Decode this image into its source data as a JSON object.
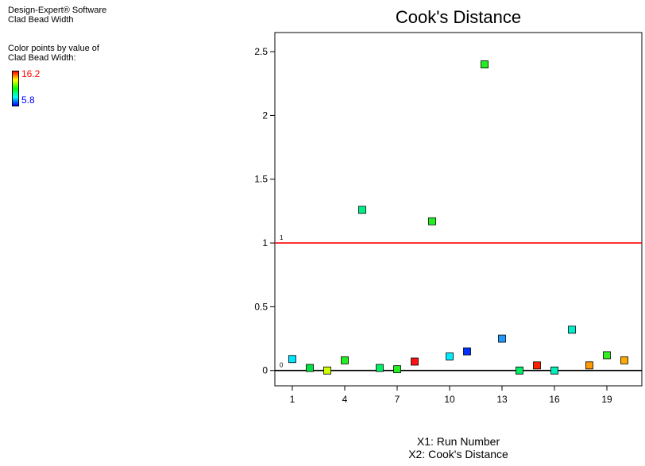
{
  "info": {
    "software": "Design-Expert® Software",
    "response": "Clad Bead Width"
  },
  "legend": {
    "heading_line1": "Color points by value of",
    "heading_line2": "Clad Bead Width:",
    "max": "16.2",
    "min": "5.8",
    "max_color": "#ff0000",
    "min_color": "#0000ff"
  },
  "chart_data": {
    "type": "scatter",
    "title": "Cook's Distance",
    "x_axis_title_line1": "X1: Run Number",
    "x_axis_title_line2": "X2: Cook's Distance",
    "xlim": [
      0,
      21
    ],
    "ylim": [
      -0.12,
      2.65
    ],
    "x_ticks": [
      1,
      4,
      7,
      10,
      13,
      16,
      19
    ],
    "y_ticks": [
      0,
      0.5,
      1,
      1.5,
      2,
      2.5
    ],
    "y_tick_labels": [
      "0",
      "0.5",
      "1",
      "1.5",
      "2",
      "2.5"
    ],
    "reference_lines": [
      {
        "value": 1,
        "label": "1",
        "color": "#ff0000"
      },
      {
        "value": 0,
        "label": "0",
        "color": "#000000"
      }
    ],
    "points": [
      {
        "run": 1,
        "cooks_distance": 0.09,
        "color": "#00e5ff"
      },
      {
        "run": 2,
        "cooks_distance": 0.02,
        "color": "#00e040"
      },
      {
        "run": 3,
        "cooks_distance": 0.0,
        "color": "#ccff00"
      },
      {
        "run": 4,
        "cooks_distance": 0.08,
        "color": "#22ee22"
      },
      {
        "run": 5,
        "cooks_distance": 1.26,
        "color": "#00ee88"
      },
      {
        "run": 6,
        "cooks_distance": 0.02,
        "color": "#00ee66"
      },
      {
        "run": 7,
        "cooks_distance": 0.01,
        "color": "#22ee22"
      },
      {
        "run": 8,
        "cooks_distance": 0.07,
        "color": "#ff1111"
      },
      {
        "run": 9,
        "cooks_distance": 1.17,
        "color": "#22ee22"
      },
      {
        "run": 10,
        "cooks_distance": 0.11,
        "color": "#00eeff"
      },
      {
        "run": 11,
        "cooks_distance": 0.15,
        "color": "#0033ff"
      },
      {
        "run": 12,
        "cooks_distance": 2.4,
        "color": "#22ee22"
      },
      {
        "run": 13,
        "cooks_distance": 0.25,
        "color": "#2299ff"
      },
      {
        "run": 14,
        "cooks_distance": 0.0,
        "color": "#00ee66"
      },
      {
        "run": 15,
        "cooks_distance": 0.04,
        "color": "#ff2200"
      },
      {
        "run": 16,
        "cooks_distance": 0.0,
        "color": "#00eebb"
      },
      {
        "run": 17,
        "cooks_distance": 0.32,
        "color": "#00eecc"
      },
      {
        "run": 18,
        "cooks_distance": 0.04,
        "color": "#ff9900"
      },
      {
        "run": 19,
        "cooks_distance": 0.12,
        "color": "#33ee22"
      },
      {
        "run": 20,
        "cooks_distance": 0.08,
        "color": "#ffaa00"
      }
    ]
  }
}
